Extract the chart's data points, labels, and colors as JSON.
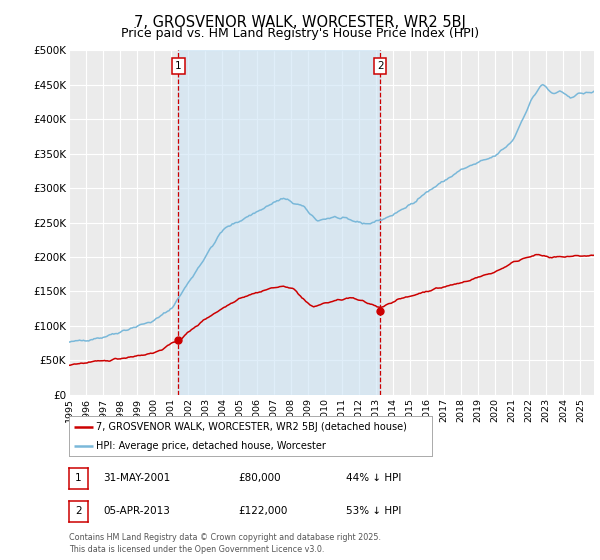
{
  "title": "7, GROSVENOR WALK, WORCESTER, WR2 5BJ",
  "subtitle": "Price paid vs. HM Land Registry's House Price Index (HPI)",
  "title_fontsize": 10.5,
  "subtitle_fontsize": 9,
  "background_color": "#ffffff",
  "plot_bg_color": "#ebebeb",
  "grid_color": "#ffffff",
  "hpi_color": "#7ab8d9",
  "price_color": "#cc0000",
  "ylim": [
    0,
    500000
  ],
  "yticks": [
    0,
    50000,
    100000,
    150000,
    200000,
    250000,
    300000,
    350000,
    400000,
    450000,
    500000
  ],
  "ytick_labels": [
    "£0",
    "£50K",
    "£100K",
    "£150K",
    "£200K",
    "£250K",
    "£300K",
    "£350K",
    "£400K",
    "£450K",
    "£500K"
  ],
  "xlim_start": 1995.0,
  "xlim_end": 2025.8,
  "xticks": [
    1995,
    1996,
    1997,
    1998,
    1999,
    2000,
    2001,
    2002,
    2003,
    2004,
    2005,
    2006,
    2007,
    2008,
    2009,
    2010,
    2011,
    2012,
    2013,
    2014,
    2015,
    2016,
    2017,
    2018,
    2019,
    2020,
    2021,
    2022,
    2023,
    2024,
    2025
  ],
  "sale1_x": 2001.42,
  "sale1_y": 80000,
  "sale1_label": "1",
  "sale2_x": 2013.26,
  "sale2_y": 122000,
  "sale2_label": "2",
  "legend_label_price": "7, GROSVENOR WALK, WORCESTER, WR2 5BJ (detached house)",
  "legend_label_hpi": "HPI: Average price, detached house, Worcester",
  "annotation1_date": "31-MAY-2001",
  "annotation1_price": "£80,000",
  "annotation1_hpi": "44% ↓ HPI",
  "annotation2_date": "05-APR-2013",
  "annotation2_price": "£122,000",
  "annotation2_hpi": "53% ↓ HPI",
  "footnote_line1": "Contains HM Land Registry data © Crown copyright and database right 2025.",
  "footnote_line2": "This data is licensed under the Open Government Licence v3.0.",
  "vline_color": "#cc0000",
  "shade_color": "#cce4f5"
}
